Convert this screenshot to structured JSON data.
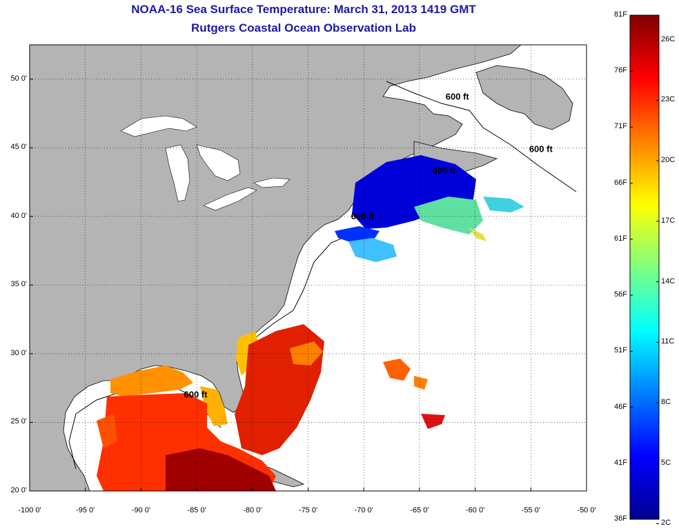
{
  "header": {
    "title": "NOAA-16 Sea Surface Temperature:  March 31, 2013 1419 GMT",
    "subtitle": "Rutgers Coastal Ocean Observation Lab"
  },
  "map": {
    "extent": {
      "lon": [
        -100,
        -50
      ],
      "lat": [
        20,
        52.5
      ]
    },
    "lon_ticks": [
      "-100 0'",
      "-95 0'",
      "-90 0'",
      "-85 0'",
      "-80 0'",
      "-75 0'",
      "-70 0'",
      "-65 0'",
      "-60 0'",
      "-55 0'",
      "-50 0'"
    ],
    "lat_ticks": [
      "20 0'",
      "25 0'",
      "30 0'",
      "35 0'",
      "40 0'",
      "45 0'",
      "50 0'"
    ],
    "contour_labels": [
      {
        "text": "600 ft",
        "lon": -61.6,
        "lat": 48.5
      },
      {
        "text": "600 ft",
        "lon": -54.1,
        "lat": 44.7
      },
      {
        "text": "600 ft",
        "lon": -62.8,
        "lat": 43.1
      },
      {
        "text": "600 ft",
        "lon": -70.1,
        "lat": 39.8
      },
      {
        "text": "600 ft",
        "lon": -85.1,
        "lat": 26.8
      }
    ],
    "land_color": "#b4b4b4",
    "ocean_color": "#ffffff"
  },
  "colorbar": {
    "fahrenheit_labels": [
      "81F",
      "76F",
      "71F",
      "66F",
      "61F",
      "56F",
      "51F",
      "46F",
      "41F",
      "36F"
    ],
    "celsius_labels": [
      "26C",
      "23C",
      "20C",
      "17C",
      "14C",
      "11C",
      "8C",
      "5C",
      "2C"
    ],
    "range_f": [
      36,
      81
    ],
    "colors": [
      "#00008f",
      "#0000ff",
      "#0080ff",
      "#00ffff",
      "#80ff80",
      "#ffff00",
      "#ff8000",
      "#ff0000",
      "#800000"
    ]
  }
}
